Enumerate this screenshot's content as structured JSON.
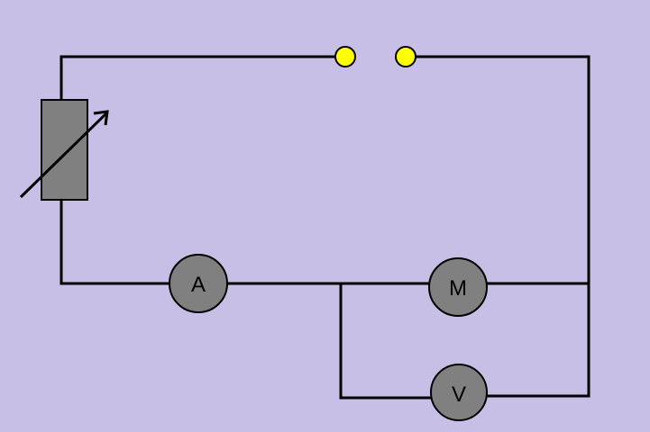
{
  "colors": {
    "background": "#c7bfe6",
    "wire": "#000000",
    "component_fill": "#808080",
    "terminal_fill": "#ffff00"
  },
  "components": {
    "ammeter": {
      "label": "A",
      "icon": "ammeter-icon"
    },
    "motor": {
      "label": "M",
      "icon": "motor-icon"
    },
    "voltmeter": {
      "label": "V",
      "icon": "voltmeter-icon"
    },
    "rheostat": {
      "icon": "variable-resistor-icon"
    },
    "terminals": {
      "count": 2,
      "icon": "terminal-icon"
    }
  }
}
